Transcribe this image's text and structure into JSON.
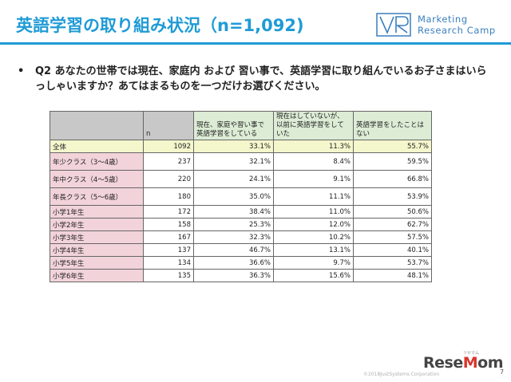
{
  "header": {
    "title": "英語学習の取り組み状況（n=1,092)",
    "logo_line1": "Marketing",
    "logo_line2": "Research Camp",
    "logo_mark_icon": "mrc-logo-icon"
  },
  "question": {
    "bullet": "•",
    "text": "Q2 あなたの世帯では現在、家庭内 および 習い事で、英語学習に取り組んでいるお子さまはいらっしゃいますか？あてはまるものを一つだけお選びください。"
  },
  "table": {
    "corner": "",
    "n_header": "n",
    "headers": [
      "現在、家庭や習い事で英語学習をしている",
      "現在はしていないが、以前に英語学習をしていた",
      "英語学習をしたことはない"
    ],
    "rows": [
      {
        "label": "全体",
        "n": "1092",
        "v1": "33.1%",
        "v2": "11.3%",
        "v3": "55.7%"
      },
      {
        "label": "年少クラス（3～4歳）",
        "n": "237",
        "v1": "32.1%",
        "v2": "8.4%",
        "v3": "59.5%"
      },
      {
        "label": "年中クラス（4～5歳）",
        "n": "220",
        "v1": "24.1%",
        "v2": "9.1%",
        "v3": "66.8%"
      },
      {
        "label": "年長クラス（5～6歳）",
        "n": "180",
        "v1": "35.0%",
        "v2": "11.1%",
        "v3": "53.9%"
      },
      {
        "label": "小学1年生",
        "n": "172",
        "v1": "38.4%",
        "v2": "11.0%",
        "v3": "50.6%"
      },
      {
        "label": "小学2年生",
        "n": "158",
        "v1": "25.3%",
        "v2": "12.0%",
        "v3": "62.7%"
      },
      {
        "label": "小学3年生",
        "n": "167",
        "v1": "32.3%",
        "v2": "10.2%",
        "v3": "57.5%"
      },
      {
        "label": "小学4年生",
        "n": "137",
        "v1": "46.7%",
        "v2": "13.1%",
        "v3": "40.1%"
      },
      {
        "label": "小学5年生",
        "n": "134",
        "v1": "36.6%",
        "v2": "9.7%",
        "v3": "53.7%"
      },
      {
        "label": "小学6年生",
        "n": "135",
        "v1": "36.3%",
        "v2": "15.6%",
        "v3": "48.1%"
      }
    ]
  },
  "footer": {
    "brand_prefix": "Rese",
    "brand_o": "M",
    "brand_suffix": "om",
    "brand_small": "リセマム",
    "copyright": "©2018JustSystems Corporation",
    "page_number": "7"
  },
  "colors": {
    "title": "#1f9bd6",
    "header_gray": "#c8c8c8",
    "header_green": "#dcecd5",
    "label_pink": "#f2d3da",
    "total_yellow": "#f4f6cc"
  }
}
